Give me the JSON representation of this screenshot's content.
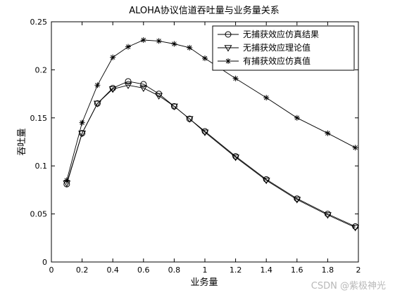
{
  "chart_data": {
    "type": "line",
    "title": "ALOHA协议信道吞吐量与业务量关系",
    "xlabel": "业务量",
    "ylabel": "吞吐量",
    "xlim": [
      0,
      2
    ],
    "ylim": [
      0,
      0.25
    ],
    "xticks": [
      "0",
      "0.2",
      "0.4",
      "0.6",
      "0.8",
      "1",
      "1.2",
      "1.4",
      "1.6",
      "1.8",
      "2"
    ],
    "yticks": [
      "0",
      "0.05",
      "0.1",
      "0.15",
      "0.2",
      "0.25"
    ],
    "grid": false,
    "legend_position": "top-right",
    "series": [
      {
        "name": "无捕获效应仿真结果",
        "marker": "circle",
        "color": "#000000",
        "x": [
          0.1,
          0.2,
          0.3,
          0.4,
          0.5,
          0.6,
          0.7,
          0.8,
          0.9,
          1.0,
          1.2,
          1.4,
          1.6,
          1.8,
          1.98
        ],
        "y": [
          0.081,
          0.134,
          0.165,
          0.181,
          0.188,
          0.185,
          0.175,
          0.162,
          0.149,
          0.136,
          0.11,
          0.086,
          0.066,
          0.05,
          0.037
        ]
      },
      {
        "name": "无捕获效应理论值",
        "marker": "triangle-down",
        "color": "#000000",
        "x": [
          0.1,
          0.2,
          0.3,
          0.4,
          0.5,
          0.6,
          0.7,
          0.8,
          0.9,
          1.0,
          1.2,
          1.4,
          1.6,
          1.8,
          1.98
        ],
        "y": [
          0.082,
          0.134,
          0.165,
          0.18,
          0.184,
          0.181,
          0.173,
          0.162,
          0.149,
          0.135,
          0.109,
          0.085,
          0.065,
          0.049,
          0.036
        ]
      },
      {
        "name": "有捕获效应仿真值",
        "marker": "star",
        "color": "#000000",
        "x": [
          0.1,
          0.2,
          0.3,
          0.4,
          0.5,
          0.6,
          0.7,
          0.8,
          0.9,
          1.0,
          1.2,
          1.4,
          1.6,
          1.8,
          1.98
        ],
        "y": [
          0.085,
          0.145,
          0.184,
          0.213,
          0.224,
          0.231,
          0.23,
          0.227,
          0.223,
          0.212,
          0.191,
          0.171,
          0.15,
          0.134,
          0.119
        ]
      }
    ]
  },
  "watermark": "CSDN @紫极神光"
}
